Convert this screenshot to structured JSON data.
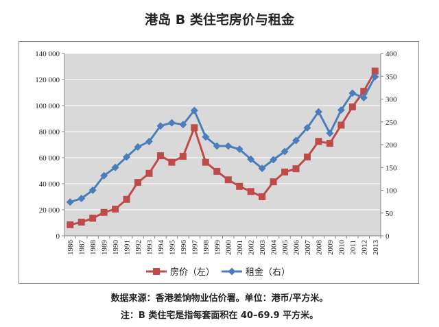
{
  "title": "港岛 B 类住宅房价与租金",
  "chart_data": {
    "type": "line",
    "title": "港岛 B 类住宅房价与租金",
    "categories": [
      "1986",
      "1987",
      "1988",
      "1989",
      "1990",
      "1991",
      "1992",
      "1993",
      "1994",
      "1995",
      "1996",
      "1997",
      "1998",
      "1999",
      "2000",
      "2001",
      "2002",
      "2003",
      "2004",
      "2005",
      "2006",
      "2007",
      "2008",
      "2009",
      "2010",
      "2011",
      "2012",
      "2013"
    ],
    "series": [
      {
        "name": "房价（左）",
        "axis": "left",
        "color": "#be4b48",
        "marker": "square",
        "values": [
          8500,
          10500,
          13500,
          18000,
          20500,
          28000,
          41000,
          48000,
          61500,
          56500,
          61000,
          83000,
          56500,
          49500,
          43000,
          38000,
          34000,
          30000,
          41500,
          49000,
          51500,
          60500,
          72500,
          71000,
          85000,
          99000,
          111000,
          126500
        ]
      },
      {
        "name": "租金（右）",
        "axis": "right",
        "color": "#4a7ebb",
        "marker": "diamond",
        "values": [
          74,
          82,
          100,
          132,
          150,
          173,
          195,
          207,
          241,
          248,
          244,
          275,
          217,
          197,
          197,
          190,
          168,
          148,
          167,
          185,
          209,
          237,
          272,
          225,
          276,
          313,
          303,
          349
        ]
      }
    ],
    "y_left": {
      "min": 0,
      "max": 140000,
      "ticks": [
        "0",
        "20 000",
        "40 000",
        "60 000",
        "80 000",
        "100 000",
        "120 000",
        "140 000"
      ]
    },
    "y_right": {
      "min": 0,
      "max": 400,
      "ticks": [
        "0",
        "50",
        "100",
        "150",
        "200",
        "250",
        "300",
        "350",
        "400"
      ]
    },
    "grid": true,
    "legend_position": "bottom"
  },
  "notes": {
    "source": "数据来源：香港差饷物业估价署。单位：港币/平方米。",
    "definition": "注：B 类住宅是指每套面积在 40–69.9 平方米。"
  },
  "colors": {
    "plot_background": "#d9d9d9",
    "grid": "#ffffff"
  }
}
